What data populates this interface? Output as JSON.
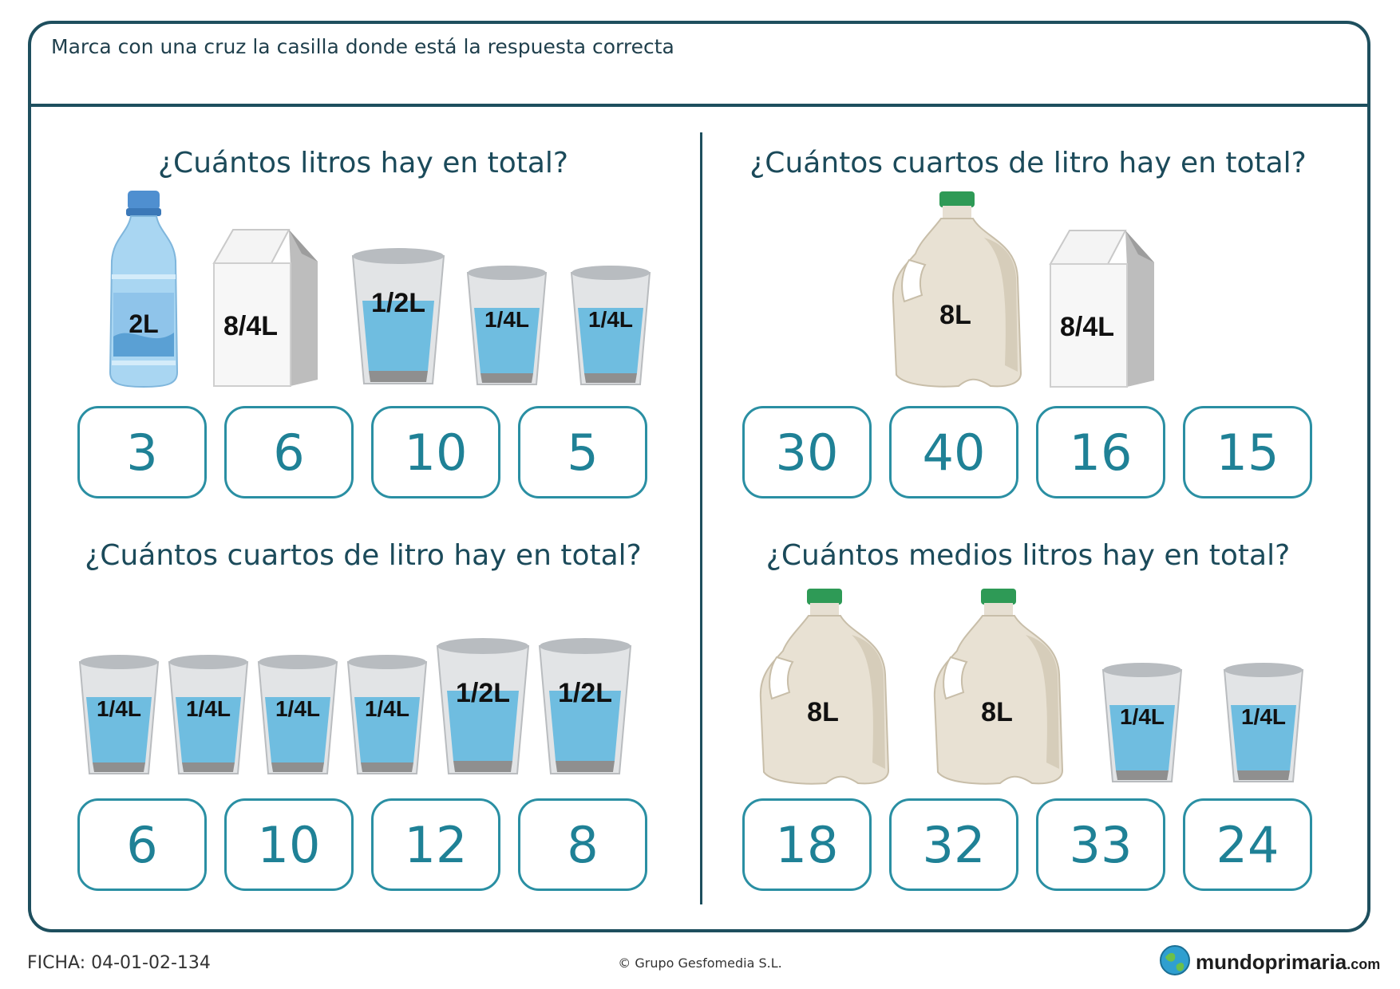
{
  "instruction": "Marca con una cruz la casilla donde está la respuesta correcta",
  "questions": [
    {
      "text": "¿Cuántos litros hay en total?",
      "items": [
        "2L",
        "8/4L",
        "1/2L",
        "1/4L",
        "1/4L"
      ],
      "answers": [
        "3",
        "6",
        "10",
        "5"
      ]
    },
    {
      "text": "¿Cuántos cuartos de litro hay en total?",
      "items": [
        "8L",
        "8/4L"
      ],
      "answers": [
        "30",
        "40",
        "16",
        "15"
      ]
    },
    {
      "text": "¿Cuántos cuartos de litro hay en total?",
      "items": [
        "1/4L",
        "1/4L",
        "1/4L",
        "1/4L",
        "1/2L",
        "1/2L"
      ],
      "answers": [
        "6",
        "10",
        "12",
        "8"
      ]
    },
    {
      "text": "¿Cuántos medios litros hay en total?",
      "items": [
        "8L",
        "8L",
        "1/4L",
        "1/4L"
      ],
      "answers": [
        "18",
        "32",
        "33",
        "24"
      ]
    }
  ],
  "footer": {
    "ficha": "FICHA: 04-01-02-134",
    "copyright": "© Grupo Gesfomedia S.L.",
    "brand_main": "mundoprimaria",
    "brand_suffix": ".com"
  },
  "icons": {
    "bottle": "water-bottle-icon",
    "carton": "milk-carton-icon",
    "glass": "water-glass-icon",
    "jug": "milk-jug-icon",
    "brand": "globe-icon"
  },
  "colors": {
    "frame": "#1e4f5e",
    "answer_border": "#2a8fa3",
    "answer_text": "#1f8196",
    "water": "#6fbde0"
  }
}
